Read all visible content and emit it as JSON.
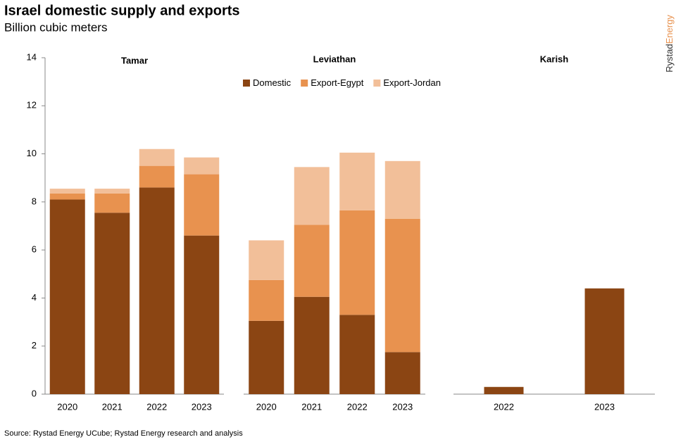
{
  "title": "Israel domestic supply and exports",
  "subtitle": "Billion cubic meters",
  "source": "Source: Rystad Energy UCube; Rystad Energy research and analysis",
  "logo": {
    "part1": "Rystad",
    "part2": "Energy"
  },
  "chart_data": [
    {
      "type": "stacked_bar",
      "title": "Tamar",
      "categories": [
        "2020",
        "2021",
        "2022",
        "2023"
      ],
      "series": [
        {
          "color": "#8b4513",
          "values": [
            8.1,
            7.55,
            8.6,
            6.6
          ]
        },
        {
          "color": "#e8924f",
          "values": [
            0.25,
            0.8,
            0.9,
            2.55
          ]
        },
        {
          "color": "#f2bf99",
          "values": [
            0.2,
            0.2,
            0.7,
            0.7
          ]
        }
      ],
      "ylim": [
        0,
        14
      ],
      "yticks": [
        0,
        2,
        4,
        6,
        8,
        10,
        12,
        14
      ]
    },
    {
      "type": "stacked_bar",
      "title": "Leviathan",
      "categories": [
        "2020",
        "2021",
        "2022",
        "2023"
      ],
      "series": [
        {
          "name": "Domestic",
          "color": "#8b4513",
          "values": [
            3.05,
            4.05,
            3.3,
            1.75
          ]
        },
        {
          "name": "Export-Egypt",
          "color": "#e8924f",
          "values": [
            1.7,
            3.0,
            4.35,
            5.55
          ]
        },
        {
          "name": "Export-Jordan",
          "color": "#f2bf99",
          "values": [
            1.65,
            2.4,
            2.4,
            2.4
          ]
        }
      ],
      "ylim": [
        0,
        14
      ]
    },
    {
      "type": "stacked_bar",
      "title": "Karish",
      "categories": [
        "2022",
        "2023"
      ],
      "series": [
        {
          "color": "#8b4513",
          "values": [
            0.3,
            4.4
          ]
        }
      ],
      "ylim": [
        0,
        14
      ]
    }
  ]
}
